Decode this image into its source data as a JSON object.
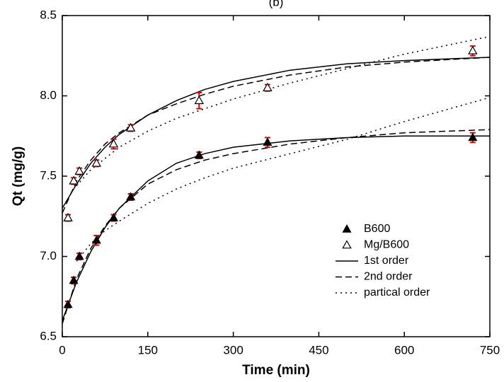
{
  "chart_data": {
    "type": "scatter",
    "title": "(b)",
    "x_label": "Time (min)",
    "y_label": "Qt (mg/g)",
    "xlim": [
      0,
      750
    ],
    "ylim": [
      6.5,
      8.5
    ],
    "xticks": [
      0,
      150,
      300,
      450,
      600,
      750
    ],
    "yticks": [
      6.5,
      {
        "value": 7,
        "label": "7.0"
      },
      7.5,
      {
        "value": 8,
        "label": "8.0"
      },
      8.5
    ],
    "legend": "lower right",
    "error_color": "#e00000",
    "x": [
      10,
      20,
      30,
      60,
      90,
      120,
      240,
      360,
      720
    ],
    "points": [
      {
        "name": "B600",
        "marker": "filled-triangle",
        "values": [
          6.7,
          6.85,
          7.0,
          7.1,
          7.24,
          7.37,
          7.63,
          7.71,
          7.74
        ],
        "errors": [
          0.02,
          0.02,
          0.02,
          0.03,
          0.02,
          0.02,
          0.02,
          0.03,
          0.03
        ]
      },
      {
        "name": "Mg/B600",
        "marker": "open-triangle",
        "values": [
          7.24,
          7.47,
          7.53,
          7.58,
          7.7,
          7.8,
          7.97,
          8.05,
          8.28
        ],
        "errors": [
          0.02,
          0.02,
          0.02,
          0.02,
          0.03,
          0.02,
          0.05,
          0.02,
          0.03
        ]
      }
    ],
    "fit_x": [
      0,
      25,
      50,
      75,
      100,
      150,
      200,
      250,
      300,
      400,
      500,
      600,
      750
    ],
    "fits": [
      {
        "name": "1st order",
        "dash": "solid",
        "curves": [
          [
            6.6,
            6.84,
            7.03,
            7.18,
            7.3,
            7.47,
            7.58,
            7.64,
            7.68,
            7.72,
            7.74,
            7.75,
            7.75
          ],
          [
            7.3,
            7.45,
            7.58,
            7.68,
            7.76,
            7.88,
            7.97,
            8.04,
            8.09,
            8.16,
            8.2,
            8.22,
            8.24
          ]
        ]
      },
      {
        "name": "2nd order",
        "dash": "dashed",
        "curves": [
          [
            6.58,
            6.86,
            7.05,
            7.19,
            7.3,
            7.45,
            7.54,
            7.6,
            7.64,
            7.7,
            7.74,
            7.77,
            7.79
          ],
          [
            7.27,
            7.47,
            7.6,
            7.7,
            7.77,
            7.88,
            7.95,
            8.01,
            8.06,
            8.13,
            8.18,
            8.21,
            8.24
          ]
        ]
      },
      {
        "name": "partical order",
        "dash": "dotted",
        "curves": [
          [
            null,
            6.97,
            7.08,
            7.16,
            7.22,
            7.33,
            7.42,
            7.49,
            7.55,
            7.64,
            7.73,
            7.84,
            7.99
          ],
          [
            null,
            7.44,
            7.54,
            7.61,
            7.68,
            7.78,
            7.86,
            7.92,
            7.98,
            8.08,
            8.17,
            8.26,
            8.37
          ]
        ]
      }
    ]
  }
}
